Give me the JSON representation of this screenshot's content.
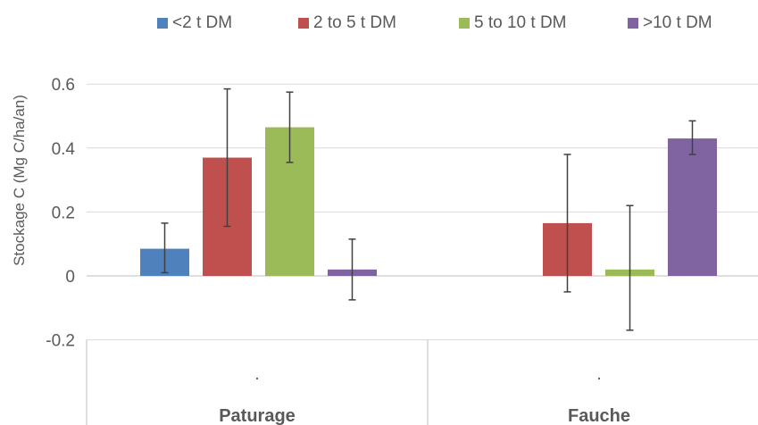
{
  "colors": {
    "axis_text": "#595959",
    "gridline": "#d9d9d9",
    "axis_line": "#bfbfbf",
    "error_bar": "#404040"
  },
  "chart_data": {
    "type": "bar",
    "title": "",
    "ylabel": "Stockage C (Mg C/ha/an)",
    "xlabel": "",
    "ylim": [
      -0.2,
      0.6
    ],
    "yticks": [
      "-0.2",
      "0",
      "0.2",
      "0.4",
      "0.6"
    ],
    "grid": true,
    "legend_position": "top",
    "groups": [
      {
        "name": "Paturage",
        "sublabel": "."
      },
      {
        "name": "Fauche",
        "sublabel": "."
      }
    ],
    "series": [
      {
        "name": "<2 t DM",
        "color": "#4f81bd",
        "values": [
          0.085,
          null
        ],
        "error_low": [
          0.01,
          null
        ],
        "error_high": [
          0.165,
          null
        ]
      },
      {
        "name": "2 to 5 t DM",
        "color": "#c0504d",
        "values": [
          0.37,
          0.165
        ],
        "error_low": [
          0.155,
          -0.05
        ],
        "error_high": [
          0.585,
          0.38
        ]
      },
      {
        "name": "5 to 10 t DM",
        "color": "#9bbb59",
        "values": [
          0.465,
          0.02
        ],
        "error_low": [
          0.355,
          -0.17
        ],
        "error_high": [
          0.575,
          0.22
        ]
      },
      {
        "name": ">10 t DM",
        "color": "#8064a2",
        "values": [
          0.02,
          0.43
        ],
        "error_low": [
          -0.075,
          0.38
        ],
        "error_high": [
          0.115,
          0.485
        ]
      }
    ]
  }
}
